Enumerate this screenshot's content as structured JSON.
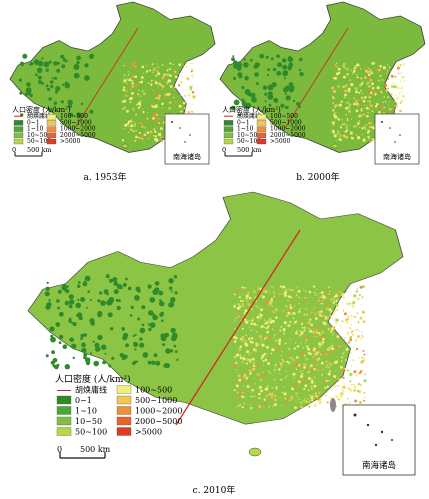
{
  "panels": [
    {
      "caption": "a. 1953年",
      "legend_title": "人口密度 (人/km²)",
      "scale_label": "500 km",
      "scale_zero": "0",
      "inset_label": "南海诸岛"
    },
    {
      "caption": "b. 2000年",
      "legend_title": "人口密度 (人/km²)",
      "scale_label": "500 km",
      "scale_zero": "0",
      "inset_label": "南海诸岛"
    },
    {
      "caption": "c. 2010年",
      "legend_title": "人口密度 (人/km²)",
      "scale_label": "500 km",
      "scale_zero": "0",
      "inset_label": "南海诸岛"
    }
  ],
  "legend": {
    "hu_line_label": "胡焕庸线",
    "classes": [
      {
        "label": "0~1",
        "color": "#2f8a2a"
      },
      {
        "label": "1~10",
        "color": "#4ea637"
      },
      {
        "label": "10~50",
        "color": "#7fbf3f"
      },
      {
        "label": "50~100",
        "color": "#b4d84a"
      },
      {
        "label": "100~500",
        "color": "#f3f07a"
      },
      {
        "label": "500~1000",
        "color": "#f2c74d"
      },
      {
        "label": "1000~2000",
        "color": "#ee8f3a"
      },
      {
        "label": ">5000",
        "color": "#e03a27"
      },
      {
        "label": "2000~5000",
        "color": "#e8642f"
      }
    ]
  },
  "colors": {
    "hu_line": "#d42020",
    "border": "#4a4a4a",
    "taiwan": "#8a8a8a"
  }
}
